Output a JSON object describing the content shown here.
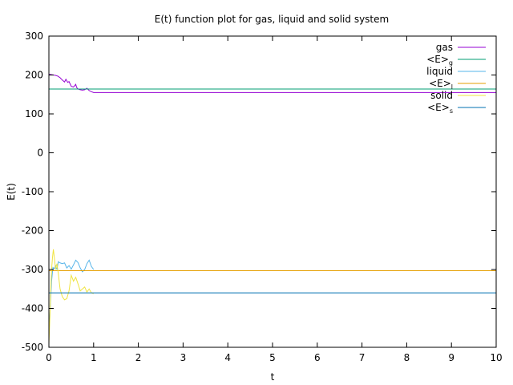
{
  "chart_data": {
    "type": "line",
    "title": "E(t) function plot for gas, liquid and solid system",
    "xlabel": "t",
    "ylabel": "E(t)",
    "xlim": [
      0,
      10
    ],
    "ylim": [
      -500,
      300
    ],
    "xticks": [
      0,
      1,
      2,
      3,
      4,
      5,
      6,
      7,
      8,
      9,
      10
    ],
    "yticks": [
      300,
      200,
      100,
      0,
      -100,
      -200,
      -300,
      -400,
      -500
    ],
    "grid": false,
    "legend_position": "top-right",
    "series": [
      {
        "name": "gas",
        "color": "#9400d3",
        "x": [
          0.0,
          0.05,
          0.1,
          0.15,
          0.2,
          0.25,
          0.3,
          0.35,
          0.38,
          0.42,
          0.45,
          0.5,
          0.55,
          0.6,
          0.62,
          0.65,
          0.7,
          0.75,
          0.8,
          0.85,
          0.9,
          0.95,
          1.0,
          1.05,
          2.0,
          4.0,
          6.0,
          8.0,
          10.0
        ],
        "y": [
          202,
          201,
          200,
          199,
          197,
          193,
          187,
          182,
          189,
          181,
          183,
          171,
          169,
          176,
          168,
          164,
          162,
          161,
          162,
          166,
          160,
          157,
          155,
          155,
          155,
          155,
          155,
          155,
          155
        ]
      },
      {
        "name": "<E>",
        "subscript": "g",
        "color": "#009e73",
        "x": [
          0,
          10
        ],
        "y": [
          164,
          164
        ]
      },
      {
        "name": "liquid",
        "color": "#56b4e9",
        "x": [
          0.0,
          0.03,
          0.06,
          0.09,
          0.12,
          0.15,
          0.18,
          0.21,
          0.25,
          0.3,
          0.35,
          0.4,
          0.45,
          0.5,
          0.55,
          0.6,
          0.65,
          0.7,
          0.75,
          0.8,
          0.85,
          0.9,
          0.95,
          1.0
        ],
        "y": [
          -470,
          -400,
          -330,
          -295,
          -298,
          -290,
          -300,
          -280,
          -283,
          -285,
          -283,
          -296,
          -290,
          -299,
          -288,
          -276,
          -282,
          -296,
          -306,
          -300,
          -285,
          -276,
          -292,
          -300
        ]
      },
      {
        "name": "<E>",
        "subscript": "l",
        "color": "#e69f00",
        "x": [
          0,
          10
        ],
        "y": [
          -303,
          -303
        ]
      },
      {
        "name": "solid",
        "color": "#f0e442",
        "x": [
          0.0,
          0.02,
          0.04,
          0.06,
          0.08,
          0.1,
          0.12,
          0.15,
          0.18,
          0.21,
          0.25,
          0.3,
          0.35,
          0.4,
          0.45,
          0.5,
          0.55,
          0.6,
          0.63,
          0.66,
          0.7,
          0.75,
          0.8,
          0.85,
          0.9,
          0.95,
          1.0
        ],
        "y": [
          -490,
          -430,
          -360,
          -300,
          -270,
          -248,
          -268,
          -300,
          -285,
          -310,
          -350,
          -370,
          -378,
          -375,
          -355,
          -315,
          -330,
          -320,
          -330,
          -340,
          -355,
          -350,
          -345,
          -358,
          -350,
          -360,
          -362
        ]
      },
      {
        "name": "<E>",
        "subscript": "s",
        "color": "#0072b2",
        "x": [
          0,
          10
        ],
        "y": [
          -360,
          -360
        ]
      }
    ]
  }
}
